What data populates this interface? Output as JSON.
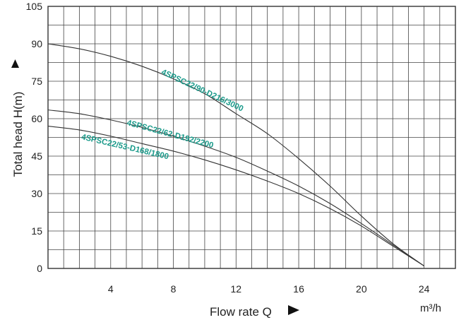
{
  "chart_data": {
    "type": "line",
    "xlabel": "Flow rate Q",
    "ylabel": "Total head H(m)",
    "x_unit": "m³/h",
    "xlim": [
      0,
      26
    ],
    "ylim": [
      0,
      105
    ],
    "x_ticks": [
      4,
      8,
      12,
      16,
      20,
      24
    ],
    "y_ticks": [
      0,
      15,
      30,
      45,
      60,
      75,
      90,
      105
    ],
    "grid": true,
    "series": [
      {
        "name": "4SPSC22/90-D216/3000",
        "x": [
          0,
          2,
          4,
          6,
          8,
          10,
          12,
          14,
          16,
          18,
          20,
          22,
          24
        ],
        "y": [
          90,
          88,
          85,
          81,
          76,
          70,
          62,
          54,
          44,
          33,
          21,
          10,
          1
        ]
      },
      {
        "name": "4SPSC22/62-D192/2200",
        "x": [
          0,
          2,
          4,
          6,
          8,
          10,
          12,
          14,
          16,
          18,
          20,
          22,
          24
        ],
        "y": [
          63.5,
          62,
          59.5,
          56.5,
          53,
          49,
          44.5,
          39,
          33,
          26,
          18,
          9.5,
          1
        ]
      },
      {
        "name": "4SPSC22/53-D168/1800",
        "x": [
          0,
          2,
          4,
          6,
          8,
          10,
          12,
          14,
          16,
          18,
          20,
          22,
          24
        ],
        "y": [
          57,
          55.5,
          53,
          50,
          47,
          43.5,
          39.5,
          35,
          30,
          24,
          17,
          9,
          1
        ]
      }
    ],
    "label_color": "#1a9a8a"
  }
}
